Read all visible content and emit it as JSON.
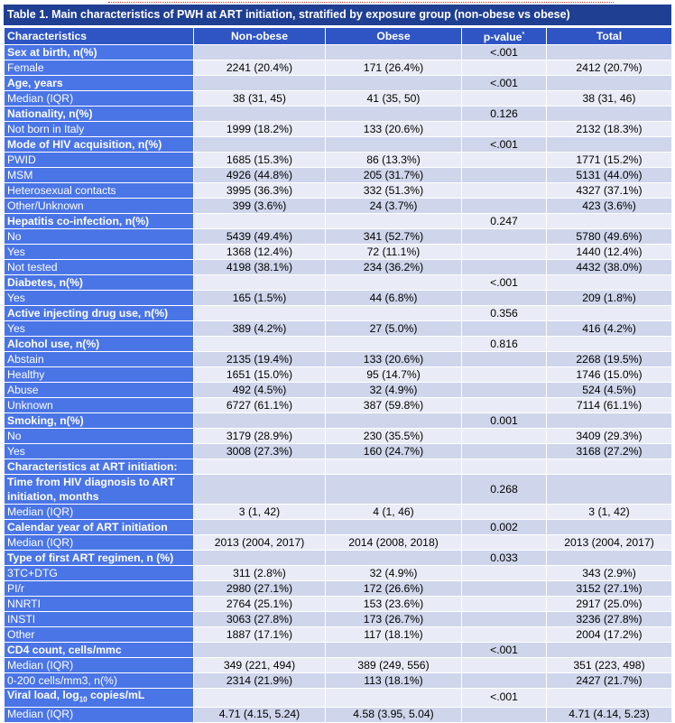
{
  "title": "Table 1. Main characteristics of PWH at ART initiation, stratified by exposure group (non-obese vs obese)",
  "columns": [
    "Characteristics",
    "Non-obese",
    "Obese",
    "p-value",
    "Total"
  ],
  "pvalue_mark": "*",
  "rows": [
    {
      "label": "Sex at birth, n(%)",
      "header": true,
      "non_obese": "",
      "obese": "",
      "p": "<.001",
      "total": ""
    },
    {
      "label": "Female",
      "header": false,
      "non_obese": "2241 (20.4%)",
      "obese": "171 (26.4%)",
      "p": "",
      "total": "2412 (20.7%)"
    },
    {
      "label": "Age, years",
      "header": true,
      "non_obese": "",
      "obese": "",
      "p": "<.001",
      "total": ""
    },
    {
      "label": "Median (IQR)",
      "header": false,
      "non_obese": "38 (31, 45)",
      "obese": "41 (35, 50)",
      "p": "",
      "total": "38 (31, 46)"
    },
    {
      "label": "Nationality, n(%)",
      "header": true,
      "non_obese": "",
      "obese": "",
      "p": "0.126",
      "total": ""
    },
    {
      "label": "Not born in Italy",
      "header": false,
      "non_obese": "1999 (18.2%)",
      "obese": "133 (20.6%)",
      "p": "",
      "total": "2132 (18.3%)"
    },
    {
      "label": "Mode of HIV acquisition, n(%)",
      "header": true,
      "non_obese": "",
      "obese": "",
      "p": "<.001",
      "total": ""
    },
    {
      "label": "PWID",
      "header": false,
      "non_obese": "1685 (15.3%)",
      "obese": "86 (13.3%)",
      "p": "",
      "total": "1771 (15.2%)"
    },
    {
      "label": "MSM",
      "header": false,
      "non_obese": "4926 (44.8%)",
      "obese": "205 (31.7%)",
      "p": "",
      "total": "5131 (44.0%)"
    },
    {
      "label": "Heterosexual contacts",
      "header": false,
      "non_obese": "3995 (36.3%)",
      "obese": "332 (51.3%)",
      "p": "",
      "total": "4327 (37.1%)"
    },
    {
      "label": "Other/Unknown",
      "header": false,
      "non_obese": "399 (3.6%)",
      "obese": "24 (3.7%)",
      "p": "",
      "total": "423 (3.6%)"
    },
    {
      "label": "Hepatitis co-infection, n(%)",
      "header": true,
      "non_obese": "",
      "obese": "",
      "p": "0.247",
      "total": ""
    },
    {
      "label": "No",
      "header": false,
      "non_obese": "5439 (49.4%)",
      "obese": "341 (52.7%)",
      "p": "",
      "total": "5780 (49.6%)"
    },
    {
      "label": "Yes",
      "header": false,
      "non_obese": "1368 (12.4%)",
      "obese": "72 (11.1%)",
      "p": "",
      "total": "1440 (12.4%)"
    },
    {
      "label": "Not tested",
      "header": false,
      "non_obese": "4198 (38.1%)",
      "obese": "234 (36.2%)",
      "p": "",
      "total": "4432 (38.0%)"
    },
    {
      "label": "Diabetes, n(%)",
      "header": true,
      "non_obese": "",
      "obese": "",
      "p": "<.001",
      "total": ""
    },
    {
      "label": "Yes",
      "header": false,
      "non_obese": "165 (1.5%)",
      "obese": "44 (6.8%)",
      "p": "",
      "total": "209 (1.8%)"
    },
    {
      "label": "Active injecting drug use, n(%)",
      "header": true,
      "non_obese": "",
      "obese": "",
      "p": "0.356",
      "total": ""
    },
    {
      "label": "Yes",
      "header": false,
      "non_obese": "389 (4.2%)",
      "obese": "27 (5.0%)",
      "p": "",
      "total": "416 (4.2%)"
    },
    {
      "label": "Alcohol use, n(%)",
      "header": true,
      "non_obese": "",
      "obese": "",
      "p": "0.816",
      "total": ""
    },
    {
      "label": "Abstain",
      "header": false,
      "non_obese": "2135 (19.4%)",
      "obese": "133 (20.6%)",
      "p": "",
      "total": "2268 (19.5%)"
    },
    {
      "label": "Healthy",
      "header": false,
      "non_obese": "1651 (15.0%)",
      "obese": "95 (14.7%)",
      "p": "",
      "total": "1746 (15.0%)"
    },
    {
      "label": "Abuse",
      "header": false,
      "non_obese": "492 (4.5%)",
      "obese": "32 (4.9%)",
      "p": "",
      "total": "524 (4.5%)"
    },
    {
      "label": "Unknown",
      "header": false,
      "non_obese": "6727 (61.1%)",
      "obese": "387 (59.8%)",
      "p": "",
      "total": "7114 (61.1%)"
    },
    {
      "label": "Smoking, n(%)",
      "header": true,
      "non_obese": "",
      "obese": "",
      "p": "0.001",
      "total": ""
    },
    {
      "label": "No",
      "header": false,
      "non_obese": "3179 (28.9%)",
      "obese": "230 (35.5%)",
      "p": "",
      "total": "3409 (29.3%)"
    },
    {
      "label": "Yes",
      "header": false,
      "non_obese": "3008 (27.3%)",
      "obese": "160 (24.7%)",
      "p": "",
      "total": "3168 (27.2%)"
    },
    {
      "label": "Characteristics at ART initiation:",
      "header": true,
      "non_obese": "",
      "obese": "",
      "p": "",
      "total": ""
    },
    {
      "label": "Time from HIV diagnosis to ART initiation, months",
      "header": true,
      "tall": true,
      "non_obese": "",
      "obese": "",
      "p": "0.268",
      "total": ""
    },
    {
      "label": "Median (IQR)",
      "header": false,
      "non_obese": "3 (1, 42)",
      "obese": "4 (1, 46)",
      "p": "",
      "total": "3 (1, 42)"
    },
    {
      "label": "Calendar year of ART initiation",
      "header": true,
      "non_obese": "",
      "obese": "",
      "p": "0.002",
      "total": ""
    },
    {
      "label": "Median (IQR)",
      "header": false,
      "non_obese": "2013 (2004, 2017)",
      "obese": "2014 (2008, 2018)",
      "p": "",
      "total": "2013 (2004, 2017)"
    },
    {
      "label": "Type of first ART regimen, n (%)",
      "header": true,
      "non_obese": "",
      "obese": "",
      "p": "0.033",
      "total": ""
    },
    {
      "label": "3TC+DTG",
      "header": false,
      "non_obese": "311 (2.8%)",
      "obese": "32 (4.9%)",
      "p": "",
      "total": "343 (2.9%)"
    },
    {
      "label": "PI/r",
      "header": false,
      "non_obese": "2980 (27.1%)",
      "obese": "172 (26.6%)",
      "p": "",
      "total": "3152 (27.1%)"
    },
    {
      "label": "NNRTI",
      "header": false,
      "non_obese": "2764 (25.1%)",
      "obese": "153 (23.6%)",
      "p": "",
      "total": "2917 (25.0%)"
    },
    {
      "label": "INSTI",
      "header": false,
      "non_obese": "3063 (27.8%)",
      "obese": "173 (26.7%)",
      "p": "",
      "total": "3236 (27.8%)"
    },
    {
      "label": "Other",
      "header": false,
      "non_obese": "1887 (17.1%)",
      "obese": "117 (18.1%)",
      "p": "",
      "total": "2004 (17.2%)"
    },
    {
      "label": "CD4 count, cells/mmc",
      "header": true,
      "non_obese": "",
      "obese": "",
      "p": "<.001",
      "total": ""
    },
    {
      "label": "Median (IQR)",
      "header": false,
      "non_obese": "349 (221, 494)",
      "obese": "389 (249, 556)",
      "p": "",
      "total": "351 (223, 498)"
    },
    {
      "label": "0-200 cells/mm3, n(%)",
      "header": false,
      "non_obese": "2314 (21.9%)",
      "obese": "113 (18.1%)",
      "p": "",
      "total": "2427 (21.7%)"
    },
    {
      "label": "Viral load, log",
      "label_sub": "10",
      "label_after": " copies/mL",
      "header": true,
      "non_obese": "",
      "obese": "",
      "p": "<.001",
      "total": ""
    },
    {
      "label": "Median (IQR)",
      "header": false,
      "non_obese": "4.71 (4.15, 5.24)",
      "obese": "4.58 (3.95, 5.04)",
      "p": "",
      "total": "4.71 (4.14, 5.23)"
    }
  ]
}
